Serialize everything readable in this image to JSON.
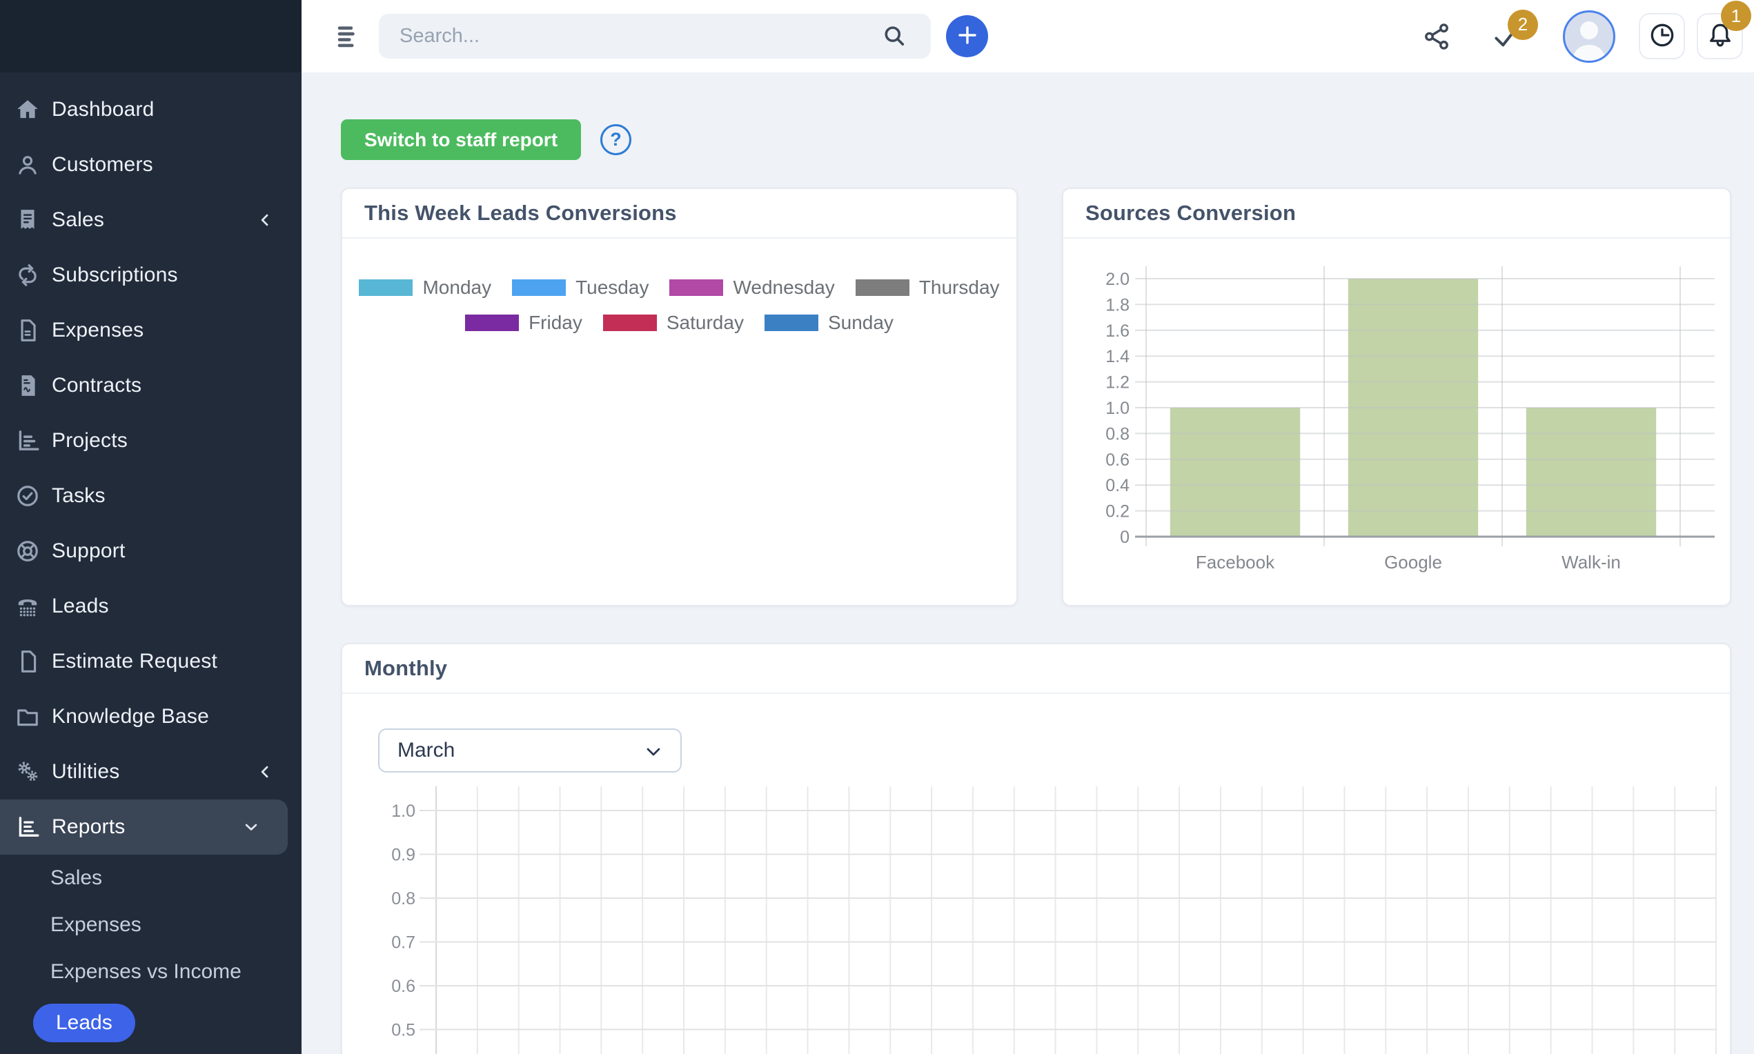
{
  "topbar": {
    "search_placeholder": "Search...",
    "check_badge_count": "2",
    "bell_badge_count": "1",
    "icons": [
      "menu-icon",
      "search-icon",
      "plus-icon",
      "share-icon",
      "check-icon",
      "avatar",
      "clock-icon",
      "bell-icon"
    ]
  },
  "sidebar": {
    "items": [
      {
        "label": "Dashboard",
        "icon": "home"
      },
      {
        "label": "Customers",
        "icon": "user"
      },
      {
        "label": "Sales",
        "icon": "receipt",
        "chevron": "left"
      },
      {
        "label": "Subscriptions",
        "icon": "repeat"
      },
      {
        "label": "Expenses",
        "icon": "file-lines"
      },
      {
        "label": "Contracts",
        "icon": "file-contract"
      },
      {
        "label": "Projects",
        "icon": "chart-bars"
      },
      {
        "label": "Tasks",
        "icon": "check-circle"
      },
      {
        "label": "Support",
        "icon": "life-ring"
      },
      {
        "label": "Leads",
        "icon": "phone"
      },
      {
        "label": "Estimate Request",
        "icon": "file"
      },
      {
        "label": "Knowledge Base",
        "icon": "folder"
      },
      {
        "label": "Utilities",
        "icon": "gears",
        "chevron": "left"
      },
      {
        "label": "Reports",
        "icon": "report-chart",
        "chevron": "down",
        "active": true
      }
    ],
    "sub_items": [
      {
        "label": "Sales"
      },
      {
        "label": "Expenses"
      },
      {
        "label": "Expenses vs Income"
      },
      {
        "label": "Leads",
        "active": true
      }
    ]
  },
  "content": {
    "switch_button_label": "Switch to staff report",
    "help_icon_glyph": "?"
  },
  "colors": {
    "accent_blue": "#3565dc",
    "leads_pill_blue": "#3d63e8",
    "button_green": "#4cbb5f",
    "badge_gold": "#c9962d",
    "bar_green": "#c2d3a7",
    "sidebar_bg": "#212b3a",
    "sidebar_active_bg": "#3a4556"
  },
  "chart_data": [
    {
      "type": "bar",
      "title": "This Week Leads Conversions",
      "categories": [
        "Monday",
        "Tuesday",
        "Wednesday",
        "Thursday",
        "Friday",
        "Saturday",
        "Sunday"
      ],
      "series": [],
      "legend_position": "top-center",
      "legend": [
        {
          "label": "Monday",
          "color": "#57b7d5"
        },
        {
          "label": "Tuesday",
          "color": "#4da3f0"
        },
        {
          "label": "Wednesday",
          "color": "#b249a5"
        },
        {
          "label": "Thursday",
          "color": "#7d7d7d"
        },
        {
          "label": "Friday",
          "color": "#7b2ba2"
        },
        {
          "label": "Saturday",
          "color": "#c32e56"
        },
        {
          "label": "Sunday",
          "color": "#3c80c4"
        }
      ]
    },
    {
      "type": "bar",
      "title": "Sources Conversion",
      "categories": [
        "Facebook",
        "Google",
        "Walk-in"
      ],
      "values": [
        1,
        2,
        1
      ],
      "ylim": [
        0,
        2
      ],
      "ytick_step": 0.2,
      "bar_color": "#c2d3a7",
      "grid": true,
      "legend_position": "none"
    },
    {
      "type": "line",
      "title": "Monthly",
      "month_selector": {
        "selected": "March"
      },
      "series": [],
      "yticks_visible": [
        "1.0",
        "0.9",
        "0.8",
        "0.7",
        "0.6",
        "0.5"
      ],
      "x_gridlines": 31,
      "grid": true
    }
  ]
}
